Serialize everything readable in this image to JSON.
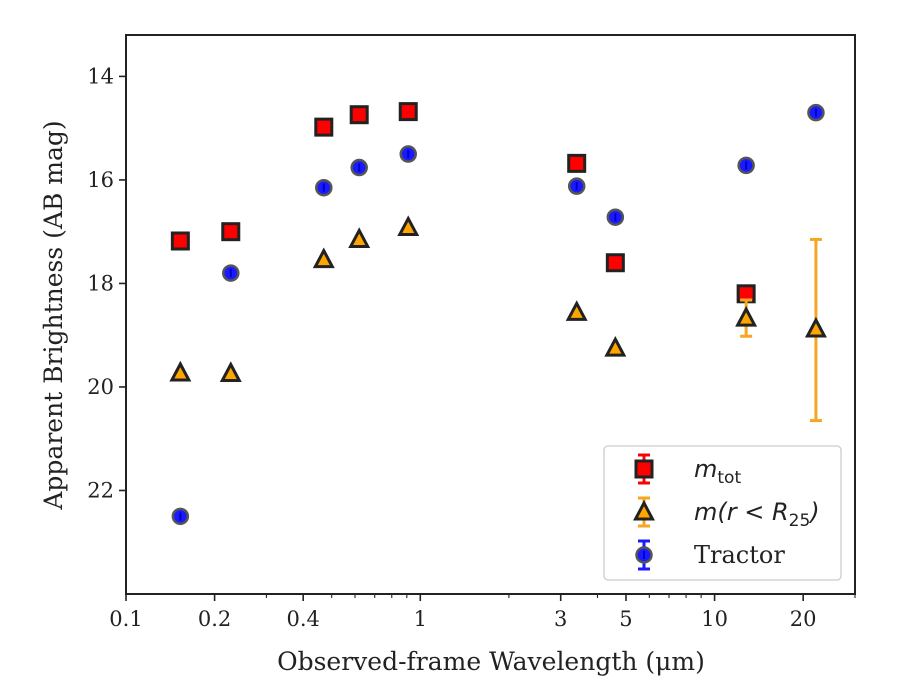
{
  "chart_data": {
    "type": "scatter",
    "xlabel": "Observed-frame Wavelength (μm)",
    "ylabel": "Apparent Brightness (AB mag)",
    "xscale": "log",
    "xlim": [
      0.1,
      30
    ],
    "ylim": [
      24,
      13.2
    ],
    "y_inverted": true,
    "xticks": [
      {
        "value": 0.1,
        "label": "0.1"
      },
      {
        "value": 0.2,
        "label": "0.2"
      },
      {
        "value": 0.4,
        "label": "0.4"
      },
      {
        "value": 1,
        "label": "1"
      },
      {
        "value": 3,
        "label": "3"
      },
      {
        "value": 5,
        "label": "5"
      },
      {
        "value": 10,
        "label": "10"
      },
      {
        "value": 20,
        "label": "20"
      }
    ],
    "yticks": [
      {
        "value": 14,
        "label": "14"
      },
      {
        "value": 16,
        "label": "16"
      },
      {
        "value": 18,
        "label": "18"
      },
      {
        "value": 20,
        "label": "20"
      },
      {
        "value": 22,
        "label": "22"
      }
    ],
    "legend_position": "lower-right",
    "series": [
      {
        "name": "m_tot",
        "legend_label": {
          "base": "m",
          "sub": "tot",
          "suffix": ""
        },
        "marker": "square",
        "fill": "#ff0000",
        "edge": "#222222",
        "errcolor": "#ff0000",
        "points": [
          {
            "x": 0.153,
            "y": 17.18
          },
          {
            "x": 0.227,
            "y": 17.0
          },
          {
            "x": 0.47,
            "y": 14.98
          },
          {
            "x": 0.62,
            "y": 14.74
          },
          {
            "x": 0.91,
            "y": 14.68
          },
          {
            "x": 3.4,
            "y": 15.68
          },
          {
            "x": 4.6,
            "y": 17.6
          },
          {
            "x": 12.8,
            "y": 18.2
          }
        ]
      },
      {
        "name": "m(r < R_25)",
        "legend_label": {
          "base": "m(r < R",
          "sub": "25",
          "suffix": ")"
        },
        "marker": "triangle",
        "fill": "#ffa500",
        "edge": "#222222",
        "errcolor": "#f5a623",
        "points": [
          {
            "x": 0.153,
            "y": 19.73
          },
          {
            "x": 0.227,
            "y": 19.74
          },
          {
            "x": 0.47,
            "y": 17.54
          },
          {
            "x": 0.62,
            "y": 17.15
          },
          {
            "x": 0.91,
            "y": 16.92
          },
          {
            "x": 3.4,
            "y": 18.56
          },
          {
            "x": 4.6,
            "y": 19.25
          },
          {
            "x": 12.8,
            "y": 18.67,
            "err": 0.35
          },
          {
            "x": 22.1,
            "y": 18.88,
            "err_low": 17.15,
            "err_high": 20.65
          }
        ]
      },
      {
        "name": "Tractor",
        "legend_label": {
          "base": "Tractor",
          "sub": "",
          "suffix": ""
        },
        "marker": "circle",
        "fill": "#1a1aff",
        "edge": "#555555",
        "errcolor": "#1a1aff",
        "points": [
          {
            "x": 0.153,
            "y": 22.5
          },
          {
            "x": 0.227,
            "y": 17.8
          },
          {
            "x": 0.47,
            "y": 16.15
          },
          {
            "x": 0.62,
            "y": 15.76
          },
          {
            "x": 0.91,
            "y": 15.5
          },
          {
            "x": 3.4,
            "y": 16.12
          },
          {
            "x": 4.6,
            "y": 16.72
          },
          {
            "x": 12.8,
            "y": 15.72
          },
          {
            "x": 22.1,
            "y": 14.7
          }
        ]
      }
    ]
  }
}
